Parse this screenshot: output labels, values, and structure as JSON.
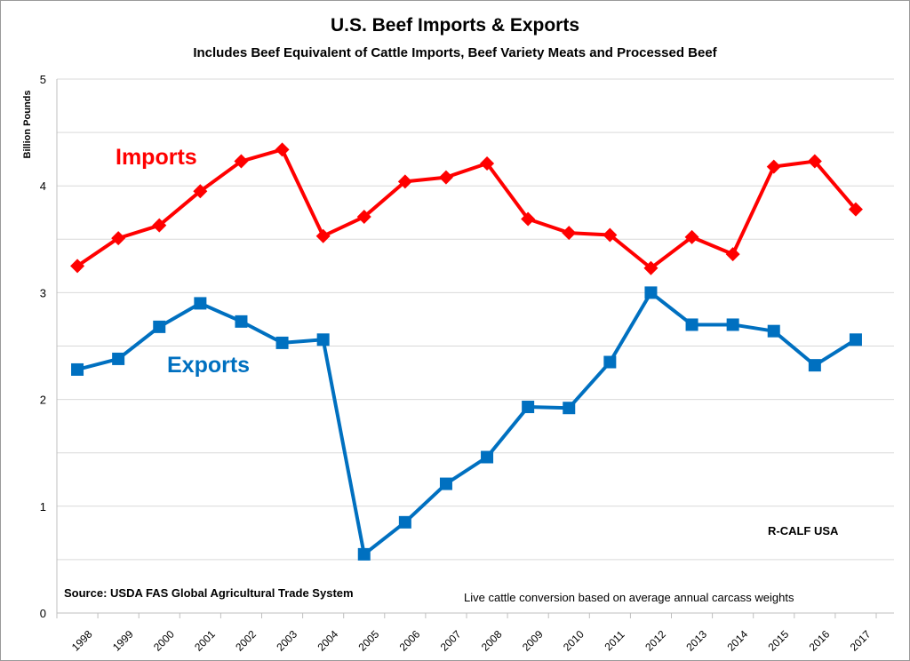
{
  "chart_data": {
    "type": "line",
    "title": "U.S. Beef Imports & Exports",
    "subtitle": "Includes Beef Equivalent of Cattle Imports, Beef Variety Meats and Processed Beef",
    "ylabel": "Billion Pounds",
    "xlabel": "",
    "ylim": [
      0,
      5
    ],
    "yticks": [
      "0",
      "1",
      "2",
      "3",
      "4",
      "5"
    ],
    "grid": true,
    "categories": [
      "1998",
      "1999",
      "2000",
      "2001",
      "2002",
      "2003",
      "2004",
      "2005",
      "2006",
      "2007",
      "2008",
      "2009",
      "2010",
      "2011",
      "2012",
      "2013",
      "2014",
      "2015",
      "2016",
      "2017"
    ],
    "series": [
      {
        "name": "Imports",
        "color": "#ff0000",
        "marker": "diamond",
        "values": [
          3.25,
          3.51,
          3.63,
          3.95,
          4.23,
          4.34,
          3.53,
          3.71,
          4.04,
          4.08,
          4.21,
          3.69,
          3.56,
          3.54,
          3.23,
          3.52,
          3.36,
          4.18,
          4.23,
          3.78
        ]
      },
      {
        "name": "Exports",
        "color": "#0070c0",
        "marker": "square",
        "values": [
          2.28,
          2.38,
          2.68,
          2.9,
          2.73,
          2.53,
          2.56,
          0.55,
          0.85,
          1.21,
          1.46,
          1.93,
          1.92,
          2.35,
          3.0,
          2.7,
          2.7,
          2.64,
          2.32,
          2.56
        ]
      }
    ],
    "annotations": {
      "org": "R-CALF USA",
      "source": "Source:  USDA FAS Global Agricultural Trade System",
      "note": "Live cattle conversion based on average annual carcass weights"
    }
  }
}
